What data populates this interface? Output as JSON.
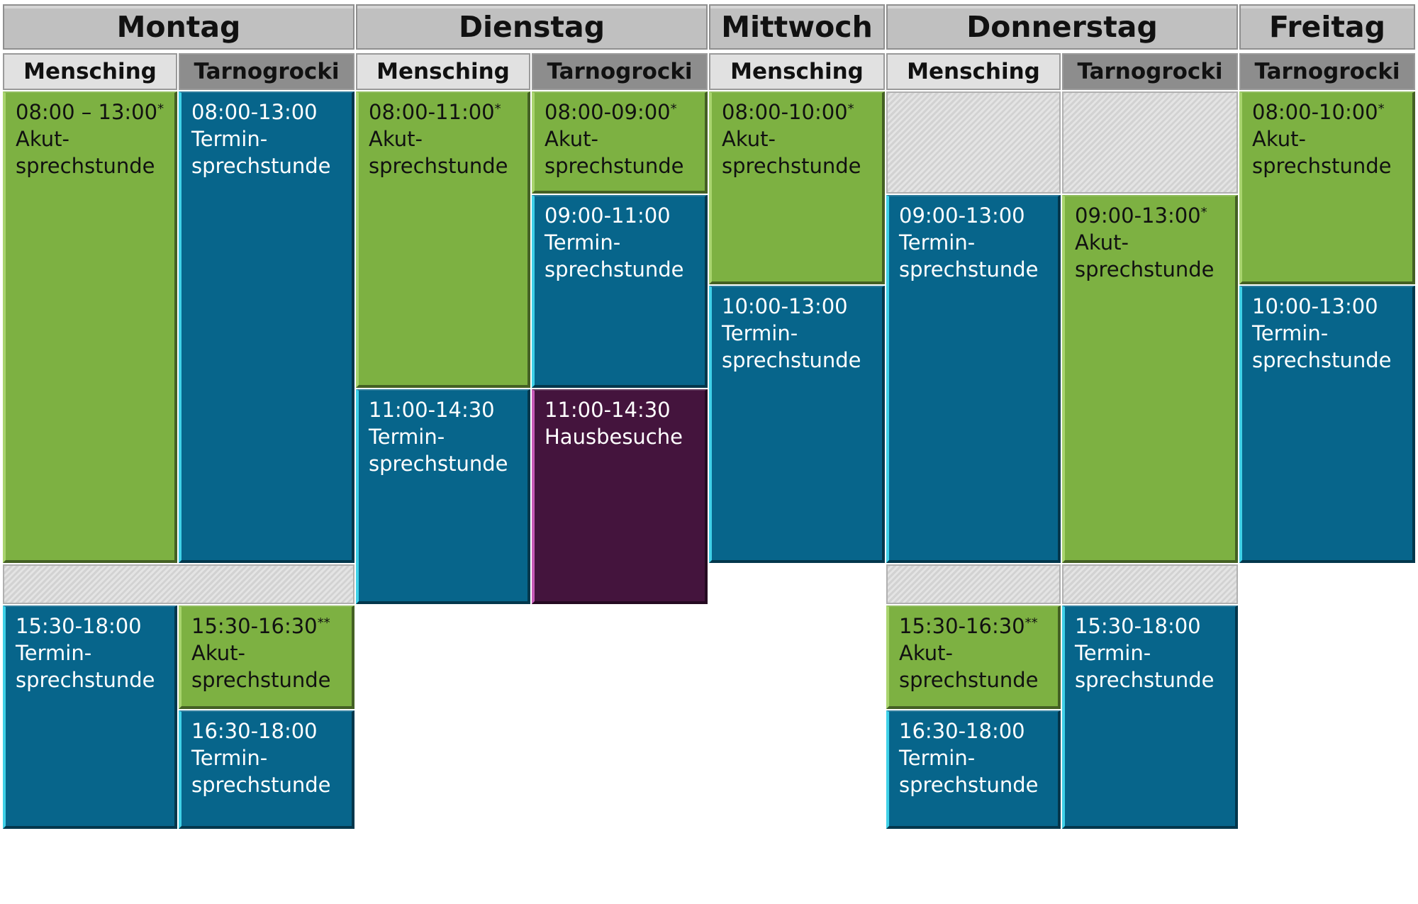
{
  "days": {
    "montag": "Montag",
    "dienstag": "Dienstag",
    "mittwoch": "Mittwoch",
    "donnerstag": "Donnerstag",
    "freitag": "Freitag"
  },
  "doctors": {
    "montag_mensching": "Mensching",
    "montag_tarnogrocki": "Tarnogrocki",
    "dienstag_mensching": "Mensching",
    "dienstag_tarnogrocki": "Tarnogrocki",
    "mittwoch_mensching": "Mensching",
    "donnerstag_mensching": "Mensching",
    "donnerstag_tarnogrocki": "Tarnogrocki",
    "freitag_tarnogrocki": "Tarnogrocki"
  },
  "slots": {
    "mo_me_am": {
      "time": "08:00 – 13:00",
      "mark": "*",
      "l1": "Akut-",
      "l2": "sprechstunde",
      "color": "#7db142"
    },
    "mo_ta_am": {
      "time": "08:00-13:00",
      "mark": "",
      "l1": "Termin-",
      "l2": "sprechstunde",
      "color": "#07658b"
    },
    "mo_me_pm": {
      "time": "15:30-18:00",
      "mark": "",
      "l1": "Termin-",
      "l2": "sprechstunde",
      "color": "#07658b"
    },
    "mo_ta_pm1": {
      "time": "15:30-16:30",
      "mark": "**",
      "l1": "Akut-",
      "l2": "sprechstunde",
      "color": "#7db142"
    },
    "mo_ta_pm2": {
      "time": "16:30-18:00",
      "mark": "",
      "l1": "Termin-",
      "l2": "sprechstunde",
      "color": "#07658b"
    },
    "di_me_1": {
      "time": "08:00-11:00",
      "mark": "*",
      "l1": "Akut-",
      "l2": "sprechstunde",
      "color": "#7db142"
    },
    "di_me_2": {
      "time": "11:00-14:30",
      "mark": "",
      "l1": "Termin-",
      "l2": "sprechstunde",
      "color": "#07658b"
    },
    "di_ta_1": {
      "time": "08:00-09:00",
      "mark": "*",
      "l1": "Akut-",
      "l2": "sprechstunde",
      "color": "#7db142"
    },
    "di_ta_2": {
      "time": "09:00-11:00",
      "mark": "",
      "l1": "Termin-",
      "l2": "sprechstunde",
      "color": "#07658b"
    },
    "di_ta_3": {
      "time": "11:00-14:30",
      "mark": "",
      "l1": "Hausbesuche",
      "l2": "",
      "color": "#44143d"
    },
    "mi_me_1": {
      "time": "08:00-10:00",
      "mark": "*",
      "l1": "Akut-",
      "l2": "sprechstunde",
      "color": "#7db142"
    },
    "mi_me_2": {
      "time": "10:00-13:00",
      "mark": "",
      "l1": "Termin-",
      "l2": "sprechstunde",
      "color": "#07658b"
    },
    "do_me_am": {
      "time": "09:00-13:00",
      "mark": "",
      "l1": "Termin-",
      "l2": "sprechstunde",
      "color": "#07658b"
    },
    "do_ta_am": {
      "time": "09:00-13:00",
      "mark": "*",
      "l1": "Akut-",
      "l2": "sprechstunde",
      "color": "#7db142"
    },
    "do_me_pm1": {
      "time": "15:30-16:30",
      "mark": "**",
      "l1": "Akut-",
      "l2": "sprechstunde",
      "color": "#7db142"
    },
    "do_me_pm2": {
      "time": "16:30-18:00",
      "mark": "",
      "l1": "Termin-",
      "l2": "sprechstunde",
      "color": "#07658b"
    },
    "do_ta_pm": {
      "time": "15:30-18:00",
      "mark": "",
      "l1": "Termin-",
      "l2": "sprechstunde",
      "color": "#07658b"
    },
    "fr_ta_1": {
      "time": "08:00-10:00",
      "mark": "*",
      "l1": "Akut-",
      "l2": "sprechstunde",
      "color": "#7db142"
    },
    "fr_ta_2": {
      "time": "10:00-13:00",
      "mark": "",
      "l1": "Termin-",
      "l2": "sprechstunde",
      "color": "#07658b"
    }
  }
}
